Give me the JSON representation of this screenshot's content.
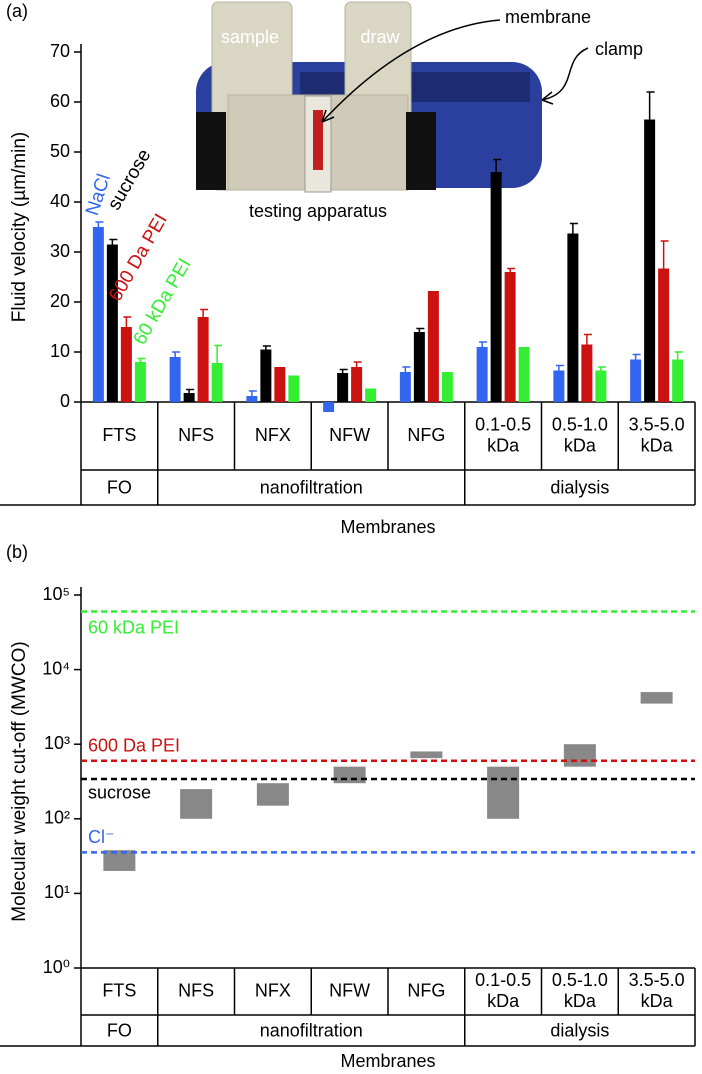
{
  "chart_data": [
    {
      "type": "bar",
      "panel_label": "(a)",
      "ylabel": "Fluid velocity (µm/min)",
      "xlabel": "Membranes",
      "categories": [
        "FTS",
        "NFS",
        "NFX",
        "NFW",
        "NFG",
        "0.1-0.5 kDa",
        "0.5-1.0 kDa",
        "3.5-5.0 kDa"
      ],
      "category_groups": [
        "FO",
        "nanofiltration",
        "nanofiltration",
        "nanofiltration",
        "nanofiltration",
        "dialysis",
        "dialysis",
        "dialysis"
      ],
      "series": [
        {
          "name": "NaCl",
          "color": "#3366ee",
          "values": [
            35,
            9,
            1.2,
            -2,
            6,
            11,
            6.3,
            8.5
          ],
          "errors": [
            1,
            1,
            1,
            null,
            1,
            1,
            1,
            1
          ]
        },
        {
          "name": "sucrose",
          "color": "#000000",
          "values": [
            31.5,
            1.8,
            10.5,
            5.8,
            14,
            46,
            33.7,
            56.5
          ],
          "errors": [
            1,
            0.7,
            0.7,
            0.7,
            0.7,
            2.5,
            2,
            5.5
          ]
        },
        {
          "name": "600 Da PEI",
          "color": "#cc1111",
          "values": [
            15,
            17,
            7,
            7,
            22.2,
            26,
            11.5,
            26.7
          ],
          "errors": [
            2,
            1.5,
            null,
            1,
            null,
            0.7,
            2,
            5.5
          ]
        },
        {
          "name": "60 kDa PEI",
          "color": "#33ee33",
          "values": [
            8,
            7.8,
            5.3,
            2.7,
            6,
            11,
            6.3,
            8.5
          ],
          "errors": [
            0.7,
            3.5,
            null,
            null,
            null,
            null,
            0.7,
            1.5
          ]
        }
      ],
      "ylim": [
        0,
        70
      ],
      "yticks": [
        0,
        10,
        20,
        30,
        40,
        50,
        60,
        70
      ],
      "annotations": [
        "sample",
        "draw",
        "membrane",
        "clamp",
        "testing apparatus"
      ]
    },
    {
      "type": "range_bar",
      "panel_label": "(b)",
      "ylabel": "Molecular weight cut-off (MWCO)",
      "xlabel": "Membranes",
      "categories": [
        "FTS",
        "NFS",
        "NFX",
        "NFW",
        "NFG",
        "0.1-0.5 kDa",
        "0.5-1.0 kDa",
        "3.5-5.0 kDa"
      ],
      "category_groups": [
        "FO",
        "nanofiltration",
        "nanofiltration",
        "nanofiltration",
        "nanofiltration",
        "dialysis",
        "dialysis",
        "dialysis"
      ],
      "color": "#888888",
      "low": [
        20,
        100,
        150,
        300,
        650,
        100,
        500,
        3500
      ],
      "high": [
        38,
        250,
        300,
        500,
        800,
        500,
        1000,
        5000
      ],
      "reference_lines": [
        {
          "name": "60 kDa PEI",
          "value": 60000,
          "color": "#33ee33"
        },
        {
          "name": "600 Da PEI",
          "value": 600,
          "color": "#cc1111"
        },
        {
          "name": "sucrose",
          "value": 342,
          "color": "#000000"
        },
        {
          "name": "Cl⁻",
          "value": 35.5,
          "color": "#3366ee"
        }
      ],
      "log_scale": true,
      "ylim": [
        1,
        100000
      ],
      "yticks": [
        {
          "value": 1,
          "label": "10⁰"
        },
        {
          "value": 10,
          "label": "10¹"
        },
        {
          "value": 100,
          "label": "10²"
        },
        {
          "value": 1000,
          "label": "10³"
        },
        {
          "value": 10000,
          "label": "10⁴"
        },
        {
          "value": 100000,
          "label": "10⁵"
        }
      ]
    }
  ]
}
